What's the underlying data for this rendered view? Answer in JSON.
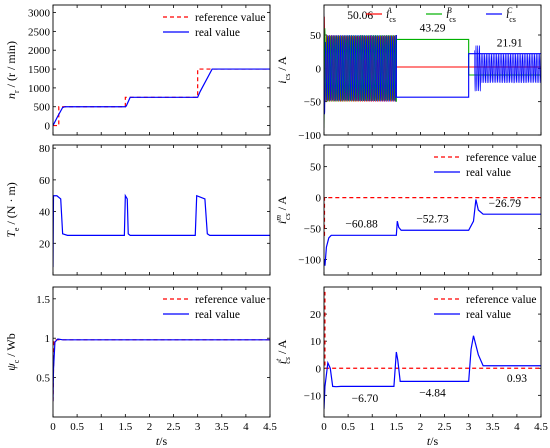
{
  "chart_data": [
    {
      "id": "a",
      "type": "line",
      "ylabel_main": "n",
      "ylabel_sub": "r",
      "ylabel_unit": " / (r / min)",
      "xlim": [
        0,
        4.5
      ],
      "ylim": [
        -250,
        3200
      ],
      "yticks": [
        0,
        500,
        1000,
        1500,
        2000,
        2500,
        3000
      ],
      "yticklabels": [
        "0",
        "500",
        "1000",
        "1500",
        "2000",
        "2500",
        "3000"
      ],
      "legend": {
        "position": "top-right",
        "items": [
          {
            "label": "reference value",
            "color": "#ff0000",
            "dash": true
          },
          {
            "label": "real value",
            "color": "#0000ff",
            "dash": false
          }
        ]
      },
      "series": [
        {
          "name": "reference value",
          "color": "#ff0000",
          "dash": true,
          "x": [
            0,
            0.12,
            0.12,
            1.5,
            1.5,
            3.0,
            3.0,
            4.5
          ],
          "y": [
            0,
            0,
            500,
            500,
            750,
            750,
            1500,
            1500
          ]
        },
        {
          "name": "real value",
          "color": "#0000ff",
          "dash": false,
          "x": [
            0,
            0.1,
            0.2,
            0.25,
            1.5,
            1.52,
            1.6,
            3.0,
            3.05,
            3.3,
            4.5
          ],
          "y": [
            0,
            250,
            480,
            500,
            500,
            520,
            750,
            750,
            900,
            1500,
            1500
          ]
        }
      ]
    },
    {
      "id": "b",
      "type": "line",
      "ylabel_main": "i",
      "ylabel_sub": "cs",
      "ylabel_unit": " / A",
      "xlim": [
        0,
        4.5
      ],
      "ylim": [
        -100,
        95
      ],
      "yticks": [
        -100,
        -50,
        0,
        50
      ],
      "yticklabels": [
        "−100",
        "−50",
        "0",
        "50"
      ],
      "legend": {
        "position": "top",
        "items": [
          {
            "label": "i",
            "sub": "cs",
            "sup": "A",
            "color": "#ff0000"
          },
          {
            "label": "i",
            "sub": "cs",
            "sup": "B",
            "color": "#00b000"
          },
          {
            "label": "i",
            "sub": "cs",
            "sup": "C",
            "color": "#0000ff"
          }
        ]
      },
      "annotations": [
        {
          "text": "50.06",
          "x": 0.75,
          "y": 74
        },
        {
          "text": "43.29",
          "x": 2.25,
          "y": 55
        },
        {
          "text": "21.91",
          "x": 3.85,
          "y": 33
        }
      ],
      "series": [
        {
          "name": "A",
          "color": "#ff0000",
          "x": [
            0.2,
            1.5,
            1.5,
            3.0,
            3.0,
            4.5
          ],
          "y": [
            50.06,
            50.06,
            2,
            2,
            2,
            2
          ]
        },
        {
          "name": "B",
          "color": "#00b000",
          "x": [
            0.2,
            1.5,
            1.5,
            3.0,
            3.0,
            4.5
          ],
          "y": [
            -50.06,
            -50.06,
            43.29,
            43.29,
            -10,
            -10
          ]
        },
        {
          "name": "C",
          "color": "#0000ff",
          "x": [
            0,
            1.5,
            1.5,
            3.0,
            3.0,
            4.5
          ],
          "y": [
            50.06,
            50.06,
            -43.29,
            -43.29,
            21.91,
            21.91
          ]
        }
      ]
    },
    {
      "id": "c",
      "type": "line",
      "ylabel_main": "T",
      "ylabel_sub": "e",
      "ylabel_unit": " / (N · m)",
      "xlim": [
        0,
        4.5
      ],
      "ylim": [
        0,
        82
      ],
      "yticks": [
        20,
        40,
        60,
        80
      ],
      "yticklabels": [
        "20",
        "40",
        "60",
        "80"
      ],
      "series": [
        {
          "name": "real value",
          "color": "#0000ff",
          "x": [
            0,
            0.01,
            0.08,
            0.16,
            0.2,
            0.3,
            1.48,
            1.5,
            1.54,
            1.56,
            1.6,
            2.95,
            2.98,
            3.15,
            3.2,
            3.25,
            4.5
          ],
          "y": [
            5,
            50,
            50,
            48,
            26,
            25,
            25,
            50,
            48,
            26,
            25,
            25,
            50,
            48,
            26,
            25,
            25
          ]
        }
      ]
    },
    {
      "id": "d",
      "type": "line",
      "ylabel_main": "i",
      "ylabel_sub": "cs",
      "ylabel_sup": "m",
      "ylabel_unit": " / A",
      "xlim": [
        0,
        4.5
      ],
      "ylim": [
        -125,
        85
      ],
      "yticks": [
        -100,
        -50,
        0,
        50
      ],
      "yticklabels": [
        "−100",
        "−50",
        "0",
        "50"
      ],
      "legend": {
        "position": "top-right",
        "items": [
          {
            "label": "reference value",
            "color": "#ff0000",
            "dash": true
          },
          {
            "label": "real value",
            "color": "#0000ff",
            "dash": false
          }
        ]
      },
      "annotations": [
        {
          "text": "−60.88",
          "x": 0.78,
          "y": -48
        },
        {
          "text": "−52.73",
          "x": 2.25,
          "y": -40
        },
        {
          "text": "−26.79",
          "x": 3.75,
          "y": -15
        }
      ],
      "series": [
        {
          "name": "reference value",
          "color": "#ff0000",
          "dash": true,
          "x": [
            0,
            0.01,
            0.01,
            4.5
          ],
          "y": [
            -60.88,
            -60.88,
            0,
            0
          ]
        },
        {
          "name": "real value",
          "color": "#0000ff",
          "dash": false,
          "x": [
            0,
            0.02,
            0.05,
            0.1,
            0.15,
            0.2,
            1.5,
            1.52,
            1.55,
            1.6,
            3.0,
            3.1,
            3.15,
            3.2,
            3.3,
            4.5
          ],
          "y": [
            -100,
            -110,
            -80,
            -65,
            -60.88,
            -60.88,
            -60.88,
            -38,
            -48,
            -52.73,
            -52.73,
            -38,
            -3,
            -20,
            -26.79,
            -26.79
          ]
        }
      ]
    },
    {
      "id": "e",
      "type": "line",
      "ylabel_main": "ψ",
      "ylabel_sub": "c",
      "ylabel_unit": " / Wb",
      "xlabel": "t",
      "xlabel_unit": "/s",
      "xlim": [
        0,
        4.5
      ],
      "ylim": [
        0,
        1.65
      ],
      "xticks": [
        0,
        0.5,
        1,
        1.5,
        2,
        2.5,
        3,
        3.5,
        4,
        4.5
      ],
      "xticklabels": [
        "0",
        "0.5",
        "1",
        "1.5",
        "2",
        "2.5",
        "3",
        "3.5",
        "4",
        "4.5"
      ],
      "yticks": [
        0.5,
        1,
        1.5
      ],
      "yticklabels": [
        "0.5",
        "1",
        "1.5"
      ],
      "legend": {
        "position": "top-right",
        "items": [
          {
            "label": "reference value",
            "color": "#ff0000",
            "dash": true
          },
          {
            "label": "real value",
            "color": "#0000ff",
            "dash": false
          }
        ]
      },
      "series": [
        {
          "name": "reference value",
          "color": "#ff0000",
          "dash": true,
          "x": [
            0,
            0.02,
            0.1,
            4.5
          ],
          "y": [
            0.2,
            0.98,
            0.98,
            0.98
          ]
        },
        {
          "name": "real value",
          "color": "#0000ff",
          "dash": false,
          "x": [
            0,
            0.01,
            0.04,
            0.1,
            0.2,
            4.5
          ],
          "y": [
            0.2,
            0.6,
            0.95,
            0.99,
            0.98,
            0.98
          ]
        }
      ]
    },
    {
      "id": "f",
      "type": "line",
      "ylabel_main": "i",
      "ylabel_sub": "cs",
      "ylabel_sup": "t",
      "ylabel_unit": " / A",
      "xlabel": "t",
      "xlabel_unit": "/s",
      "xlim": [
        0,
        4.5
      ],
      "ylim": [
        -18,
        30
      ],
      "xticks": [
        0,
        0.5,
        1,
        1.5,
        2,
        2.5,
        3,
        3.5,
        4,
        4.5
      ],
      "xticklabels": [
        "0",
        "0.5",
        "1",
        "1.5",
        "2",
        "2.5",
        "3",
        "3.5",
        "4",
        "4.5"
      ],
      "yticks": [
        -10,
        0,
        10,
        20
      ],
      "yticklabels": [
        "−10",
        "0",
        "10",
        "20"
      ],
      "legend": {
        "position": "top-right",
        "items": [
          {
            "label": "reference value",
            "color": "#ff0000",
            "dash": true
          },
          {
            "label": "real value",
            "color": "#0000ff",
            "dash": false
          }
        ]
      },
      "annotations": [
        {
          "text": "−6.70",
          "x": 0.85,
          "y": -12.5
        },
        {
          "text": "−4.84",
          "x": 2.25,
          "y": -10.5
        },
        {
          "text": "0.93",
          "x": 4.0,
          "y": -5
        }
      ],
      "series": [
        {
          "name": "reference value",
          "color": "#ff0000",
          "dash": true,
          "x": [
            0,
            0.02,
            0.02,
            4.5
          ],
          "y": [
            28,
            28,
            0,
            0
          ]
        },
        {
          "name": "real value",
          "color": "#0000ff",
          "dash": false,
          "x": [
            0,
            0.02,
            0.08,
            0.13,
            0.18,
            0.25,
            0.35,
            1.45,
            1.5,
            1.53,
            1.58,
            1.68,
            3.0,
            3.05,
            3.1,
            3.2,
            3.3,
            3.35,
            4.5
          ],
          "y": [
            -15,
            -6.7,
            2,
            0,
            -6.7,
            -6.8,
            -6.7,
            -6.7,
            6,
            3,
            -4.84,
            -4.84,
            -4.84,
            7,
            12,
            5,
            0.93,
            0.93,
            0.93
          ]
        }
      ]
    }
  ]
}
